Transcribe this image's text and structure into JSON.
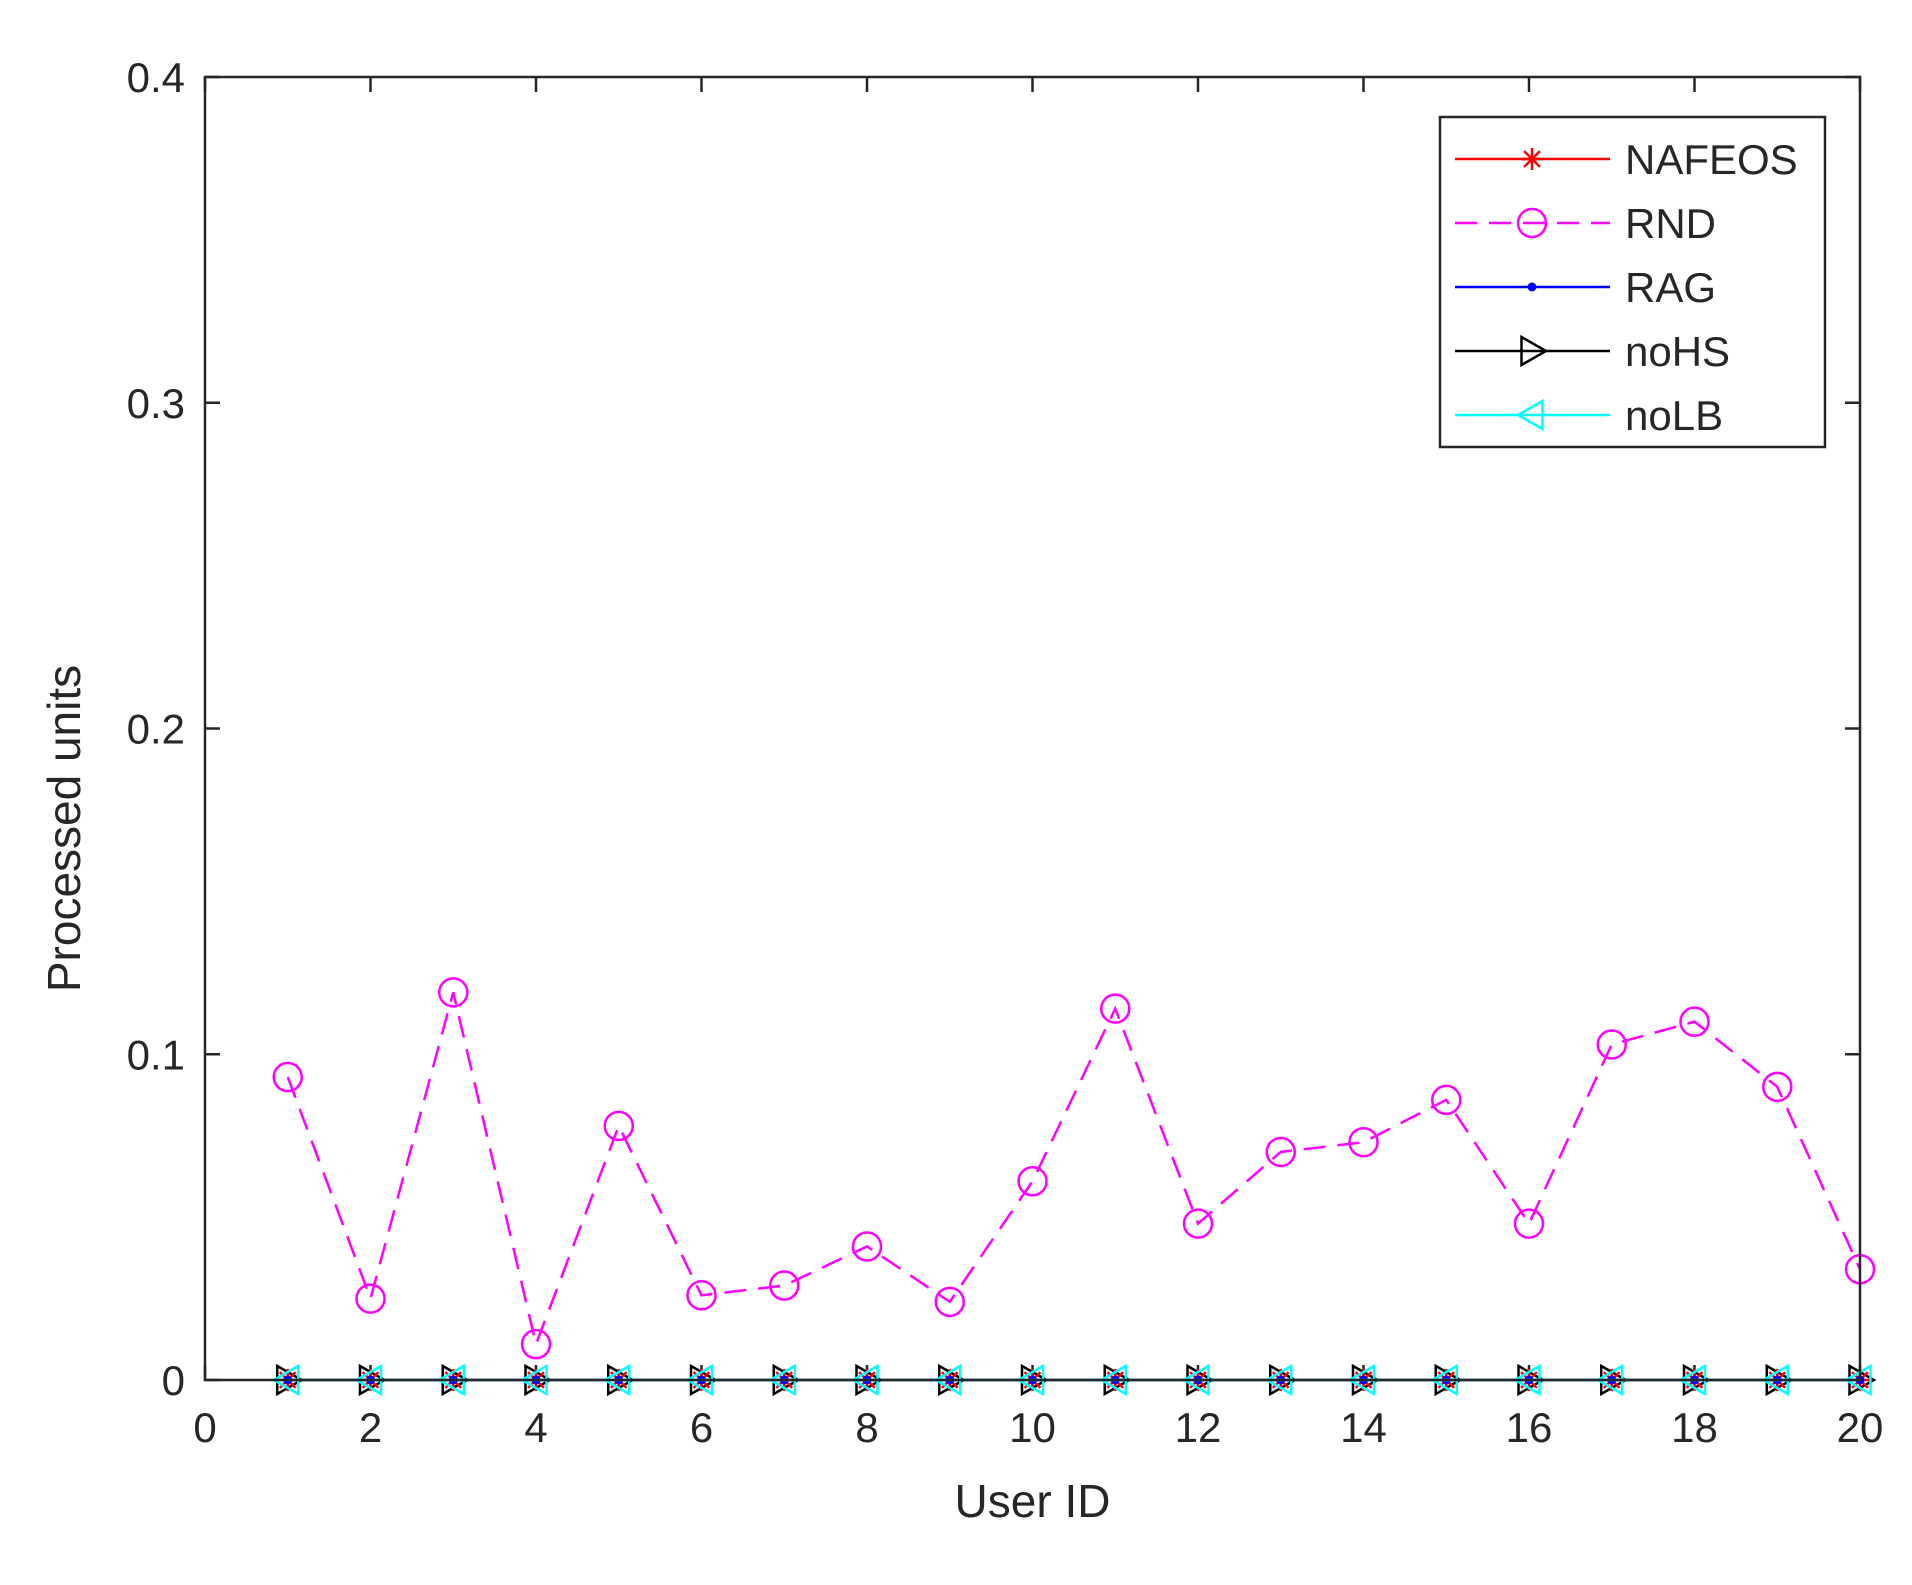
{
  "chart_data": {
    "type": "line",
    "title": "",
    "xlabel": "User ID",
    "ylabel": "Processed units",
    "xlim": [
      0,
      20
    ],
    "ylim": [
      0,
      0.4
    ],
    "x_ticks": [
      "0",
      "2",
      "4",
      "6",
      "8",
      "10",
      "12",
      "14",
      "16",
      "18",
      "20"
    ],
    "y_ticks": [
      "0",
      "0.1",
      "0.2",
      "0.3",
      "0.4"
    ],
    "grid": false,
    "legend_position": "top-right",
    "x": [
      1,
      2,
      3,
      4,
      5,
      6,
      7,
      8,
      9,
      10,
      11,
      12,
      13,
      14,
      15,
      16,
      17,
      18,
      19,
      20
    ],
    "series": [
      {
        "name": "NAFEOS",
        "color": "#ff0000",
        "line": "solid",
        "marker": "asterisk",
        "values": [
          0,
          0,
          0,
          0,
          0,
          0,
          0,
          0,
          0,
          0,
          0,
          0,
          0,
          0,
          0,
          0,
          0,
          0,
          0,
          0
        ]
      },
      {
        "name": "RND",
        "color": "#ff00ff",
        "line": "dashed",
        "marker": "circle",
        "values": [
          0.093,
          0.025,
          0.119,
          0.011,
          0.078,
          0.026,
          0.029,
          0.041,
          0.024,
          0.061,
          0.114,
          0.048,
          0.07,
          0.073,
          0.086,
          0.048,
          0.103,
          0.11,
          0.09,
          0.034
        ]
      },
      {
        "name": "RAG",
        "color": "#0000ff",
        "line": "solid",
        "marker": "dot",
        "values": [
          0,
          0,
          0,
          0,
          0,
          0,
          0,
          0,
          0,
          0,
          0,
          0,
          0,
          0,
          0,
          0,
          0,
          0,
          0,
          0
        ]
      },
      {
        "name": "noHS",
        "color": "#000000",
        "line": "solid",
        "marker": "triangle-right",
        "values": [
          0,
          0,
          0,
          0,
          0,
          0,
          0,
          0,
          0,
          0,
          0,
          0,
          0,
          0,
          0,
          0,
          0,
          0,
          0,
          0
        ]
      },
      {
        "name": "noLB",
        "color": "#00ffff",
        "line": "solid",
        "marker": "triangle-left",
        "values": [
          0,
          0,
          0,
          0,
          0,
          0,
          0,
          0,
          0,
          0,
          0,
          0,
          0,
          0,
          0,
          0,
          0,
          0,
          0,
          0
        ]
      }
    ]
  }
}
